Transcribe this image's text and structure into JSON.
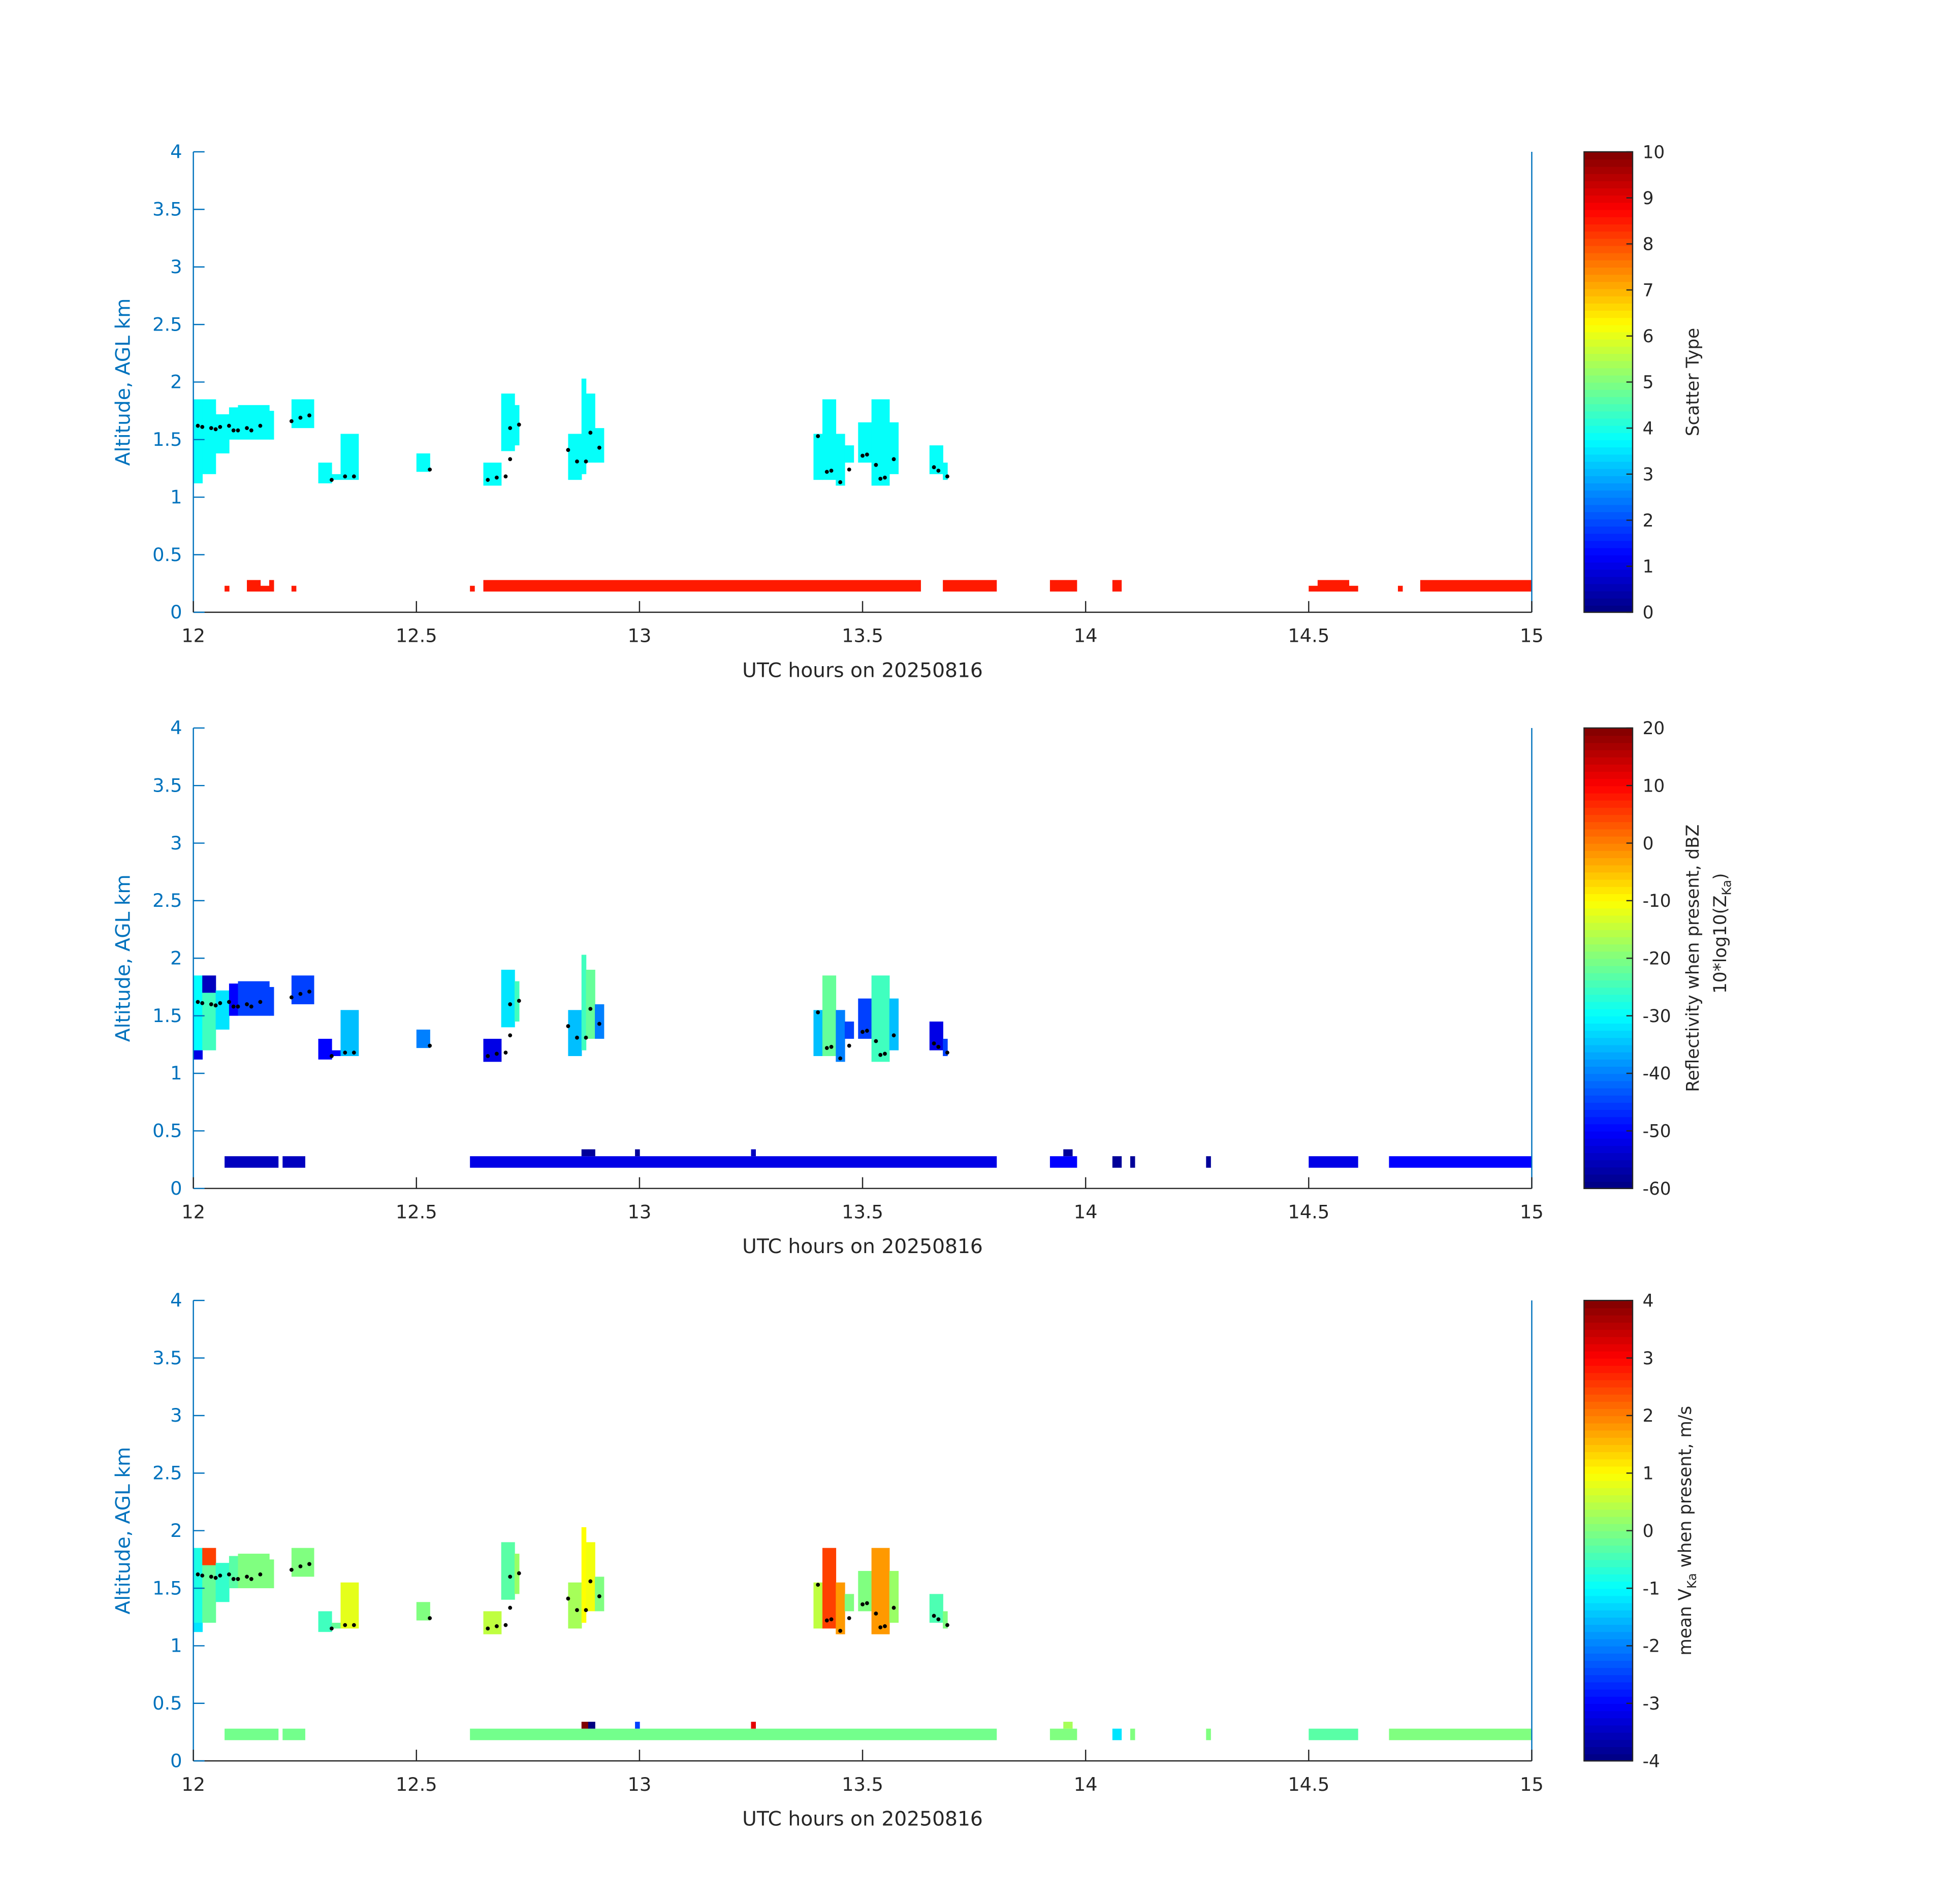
{
  "chart_data": {
    "type": "heatmap",
    "xlim": [
      12,
      15
    ],
    "ylim": [
      0,
      4
    ],
    "x_ticks": [
      "12",
      "12.5",
      "13",
      "13.5",
      "14",
      "14.5",
      "15"
    ],
    "y_ticks": [
      "0",
      "0.5",
      "1",
      "1.5",
      "2",
      "2.5",
      "3",
      "3.5",
      "4"
    ],
    "panels": [
      {
        "xlabel": "UTC hours on 20250816",
        "ylabel": "Altitude, AGL km",
        "field": "type",
        "colorbar": {
          "label": "Scatter Type",
          "sublabel": "",
          "range": [
            0,
            10
          ],
          "ticks": [
            "0",
            "1",
            "2",
            "3",
            "4",
            "5",
            "6",
            "7",
            "8",
            "9",
            "10"
          ]
        }
      },
      {
        "xlabel": "UTC hours on 20250816",
        "ylabel": "Altitude, AGL km",
        "field": "dbz",
        "colorbar": {
          "label": "Reflectivity when present, dBZ",
          "sublabel": "10*log10(Z",
          "sublabel_sub": "Ka",
          "sublabel_end": ")",
          "range": [
            -60,
            20
          ],
          "ticks": [
            "-60",
            "-50",
            "-40",
            "-30",
            "-20",
            "-10",
            "0",
            "10",
            "20"
          ]
        }
      },
      {
        "xlabel": "UTC hours on 20250816",
        "ylabel": "Altitude, AGL km",
        "field": "vel",
        "colorbar": {
          "label": "mean V",
          "label_sub": "Ka",
          "label_end": " when present, m/s",
          "sublabel": "",
          "range": [
            -4,
            4
          ],
          "ticks": [
            "-4",
            "-3",
            "-2",
            "-1",
            "0",
            "1",
            "2",
            "3",
            "4"
          ]
        }
      }
    ],
    "cloud_cells_columns": [
      "t0",
      "t1",
      "z0",
      "z1",
      "type",
      "dbz",
      "vel"
    ],
    "cloud_cells": [
      [
        12.0,
        12.02,
        1.12,
        1.85,
        3.8,
        -30,
        -0.8
      ],
      [
        12.0,
        12.02,
        1.12,
        1.2,
        3.8,
        -52,
        -1.2
      ],
      [
        12.02,
        12.05,
        1.2,
        1.75,
        3.8,
        -25,
        -0.2
      ],
      [
        12.02,
        12.05,
        1.7,
        1.85,
        3.8,
        -55,
        2.5
      ],
      [
        12.05,
        12.08,
        1.38,
        1.72,
        3.8,
        -32,
        -0.6
      ],
      [
        12.08,
        12.1,
        1.5,
        1.78,
        3.8,
        -50,
        -0.3
      ],
      [
        12.1,
        12.17,
        1.5,
        1.8,
        3.8,
        -45,
        0.0
      ],
      [
        12.17,
        12.18,
        1.5,
        1.75,
        3.8,
        -45,
        0.0
      ],
      [
        12.22,
        12.27,
        1.6,
        1.85,
        3.8,
        -45,
        0.0
      ],
      [
        12.28,
        12.31,
        1.12,
        1.3,
        3.8,
        -50,
        -0.5
      ],
      [
        12.31,
        12.33,
        1.15,
        1.2,
        3.8,
        -50,
        -0.2
      ],
      [
        12.33,
        12.37,
        1.15,
        1.55,
        3.8,
        -35,
        0.8
      ],
      [
        12.5,
        12.53,
        1.22,
        1.38,
        3.8,
        -40,
        0.0
      ],
      [
        12.65,
        12.69,
        1.1,
        1.3,
        3.8,
        -52,
        0.5
      ],
      [
        12.69,
        12.72,
        1.4,
        1.9,
        3.8,
        -32,
        -0.3
      ],
      [
        12.72,
        12.73,
        1.45,
        1.8,
        3.8,
        -25,
        0.2
      ],
      [
        12.84,
        12.87,
        1.15,
        1.55,
        3.8,
        -35,
        0.3
      ],
      [
        12.87,
        12.88,
        1.2,
        2.03,
        3.8,
        -25,
        1.0
      ],
      [
        12.88,
        12.9,
        1.3,
        1.9,
        3.8,
        -22,
        0.9
      ],
      [
        12.9,
        12.92,
        1.3,
        1.6,
        3.8,
        -40,
        0.0
      ],
      [
        13.39,
        13.41,
        1.15,
        1.55,
        3.8,
        -35,
        0.5
      ],
      [
        13.41,
        13.44,
        1.15,
        1.85,
        3.8,
        -22,
        2.5
      ],
      [
        13.44,
        13.46,
        1.1,
        1.55,
        3.8,
        -40,
        1.8
      ],
      [
        13.46,
        13.48,
        1.3,
        1.45,
        3.8,
        -45,
        0.0
      ],
      [
        13.49,
        13.52,
        1.3,
        1.65,
        3.8,
        -45,
        0.0
      ],
      [
        13.52,
        13.56,
        1.1,
        1.85,
        3.8,
        -25,
        1.8
      ],
      [
        13.56,
        13.58,
        1.2,
        1.65,
        3.8,
        -35,
        0.2
      ],
      [
        13.65,
        13.68,
        1.2,
        1.45,
        3.8,
        -52,
        -0.4
      ],
      [
        13.68,
        13.69,
        1.15,
        1.3,
        3.8,
        -45,
        0.0
      ]
    ],
    "ground_type_columns": [
      "t0",
      "t1",
      "z0",
      "z1",
      "type"
    ],
    "ground_type": [
      [
        12.07,
        12.08,
        0.18,
        0.23,
        8.5
      ],
      [
        12.12,
        12.15,
        0.18,
        0.28,
        8.5
      ],
      [
        12.15,
        12.17,
        0.18,
        0.23,
        8.5
      ],
      [
        12.17,
        12.18,
        0.18,
        0.28,
        8.5
      ],
      [
        12.22,
        12.23,
        0.18,
        0.23,
        8.5
      ],
      [
        12.62,
        12.63,
        0.18,
        0.23,
        8.5
      ],
      [
        12.65,
        13.63,
        0.18,
        0.28,
        8.5
      ],
      [
        13.68,
        13.8,
        0.18,
        0.28,
        8.5
      ],
      [
        13.92,
        13.98,
        0.18,
        0.28,
        8.5
      ],
      [
        14.06,
        14.08,
        0.18,
        0.28,
        8.5
      ],
      [
        14.5,
        14.52,
        0.18,
        0.23,
        8.5
      ],
      [
        14.52,
        14.59,
        0.18,
        0.28,
        8.5
      ],
      [
        14.59,
        14.61,
        0.18,
        0.23,
        8.5
      ],
      [
        14.7,
        14.71,
        0.18,
        0.23,
        8.5
      ],
      [
        14.75,
        15.0,
        0.18,
        0.28,
        8.5
      ]
    ],
    "ground_radar_columns": [
      "t0",
      "t1",
      "z0",
      "z1",
      "dbz",
      "vel"
    ],
    "ground_radar": [
      [
        12.07,
        12.19,
        0.18,
        0.28,
        -55,
        -0.1
      ],
      [
        12.2,
        12.25,
        0.18,
        0.28,
        -55,
        -0.1
      ],
      [
        12.62,
        13.8,
        0.18,
        0.28,
        -52,
        -0.1
      ],
      [
        12.87,
        12.885,
        0.28,
        0.34,
        -58,
        4
      ],
      [
        12.885,
        12.9,
        0.28,
        0.34,
        -58,
        -4
      ],
      [
        12.99,
        13.0,
        0.28,
        0.34,
        -58,
        -2.5
      ],
      [
        13.25,
        13.26,
        0.28,
        0.34,
        -55,
        3.2
      ],
      [
        13.92,
        13.98,
        0.18,
        0.28,
        -50,
        0.0
      ],
      [
        13.95,
        13.97,
        0.28,
        0.34,
        -58,
        0.3
      ],
      [
        14.06,
        14.08,
        0.18,
        0.28,
        -58,
        -1.2
      ],
      [
        14.1,
        14.11,
        0.18,
        0.28,
        -58,
        0.0
      ],
      [
        14.27,
        14.28,
        0.18,
        0.28,
        -58,
        0.0
      ],
      [
        14.5,
        14.61,
        0.18,
        0.28,
        -52,
        -0.3
      ],
      [
        14.68,
        15.0,
        0.18,
        0.28,
        -50,
        0.0
      ]
    ],
    "cloud_base_points": [
      [
        12.01,
        1.62
      ],
      [
        12.02,
        1.61
      ],
      [
        12.04,
        1.6
      ],
      [
        12.05,
        1.59
      ],
      [
        12.06,
        1.61
      ],
      [
        12.08,
        1.62
      ],
      [
        12.09,
        1.58
      ],
      [
        12.1,
        1.58
      ],
      [
        12.12,
        1.6
      ],
      [
        12.13,
        1.58
      ],
      [
        12.15,
        1.62
      ],
      [
        12.22,
        1.66
      ],
      [
        12.24,
        1.69
      ],
      [
        12.26,
        1.71
      ],
      [
        12.31,
        1.15
      ],
      [
        12.34,
        1.18
      ],
      [
        12.36,
        1.18
      ],
      [
        12.53,
        1.24
      ],
      [
        12.66,
        1.15
      ],
      [
        12.68,
        1.17
      ],
      [
        12.7,
        1.18
      ],
      [
        12.71,
        1.33
      ],
      [
        12.71,
        1.6
      ],
      [
        12.73,
        1.63
      ],
      [
        12.84,
        1.41
      ],
      [
        12.86,
        1.31
      ],
      [
        12.88,
        1.31
      ],
      [
        12.89,
        1.56
      ],
      [
        12.91,
        1.43
      ],
      [
        13.4,
        1.53
      ],
      [
        13.42,
        1.22
      ],
      [
        13.43,
        1.23
      ],
      [
        13.45,
        1.13
      ],
      [
        13.47,
        1.24
      ],
      [
        13.5,
        1.36
      ],
      [
        13.51,
        1.37
      ],
      [
        13.53,
        1.28
      ],
      [
        13.54,
        1.16
      ],
      [
        13.55,
        1.17
      ],
      [
        13.57,
        1.33
      ],
      [
        13.66,
        1.26
      ],
      [
        13.67,
        1.23
      ],
      [
        13.69,
        1.18
      ]
    ]
  }
}
